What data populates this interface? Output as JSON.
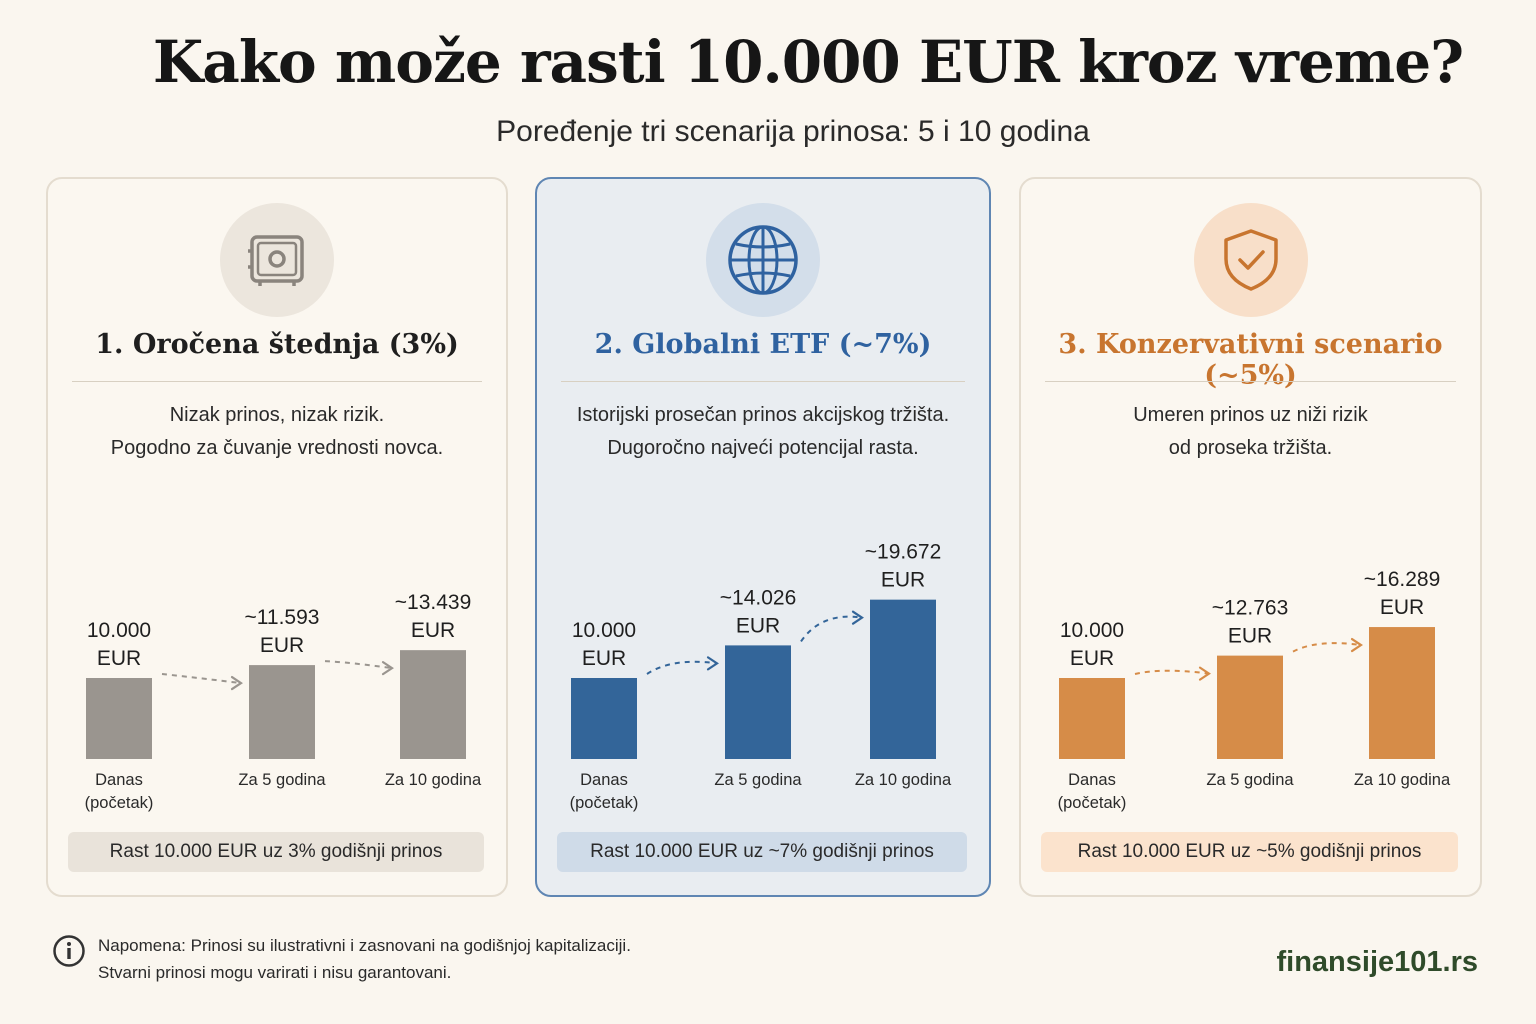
{
  "title": "Kako može rasti 10.000 EUR kroz vreme?",
  "subtitle": "Poređenje tri scenarija prinosa: 5 i 10 godina",
  "note": {
    "line1": "Napomena: Prinosi su ilustrativni i zasnovani na godišnjoj kapitalizaciji.",
    "line2": "Stvarni prinosi mogu varirati i nisu garantovani.",
    "icon": "info-icon"
  },
  "brand": "finansije101.rs",
  "scenarios": [
    {
      "title": "1. Oročena štednja (3%)",
      "icon": "safe-icon",
      "desc": [
        "Nizak prinos, nizak rizik.",
        "Pogodno za čuvanje vrednosti novca."
      ],
      "caption": "Rast 10.000 EUR uz 3% godišnji prinos",
      "color": "#9a958f",
      "title_color": "#1f1f1f",
      "icon_bg": "#ece6dd",
      "caption_bg": "#e9e3da"
    },
    {
      "title": "2. Globalni ETF (~7%)",
      "icon": "globe-icon",
      "desc": [
        "Istorijski prosečan prinos akcijskog tržišta.",
        "Dugoročno najveći potencijal rasta."
      ],
      "caption": "Rast 10.000 EUR uz ~7% godišnji prinos",
      "color": "#336599",
      "title_color": "#2f62a0",
      "icon_bg": "#d3deea",
      "caption_bg": "#cfdbe8"
    },
    {
      "title": "3. Konzervativni scenario (~5%)",
      "icon": "shield-check-icon",
      "desc": [
        "Umeren prinos uz niži rizik",
        "od proseka tržišta."
      ],
      "caption": "Rast 10.000 EUR uz ~5% godišnji prinos",
      "color": "#d68c48",
      "title_color": "#c8752f",
      "icon_bg": "#f8dfc9",
      "caption_bg": "#fbe3cd"
    }
  ],
  "chart_data": [
    {
      "type": "bar",
      "categories": [
        "Danas (početak)",
        "Za 5 godina",
        "Za 10 godina"
      ],
      "values": [
        10000,
        11593,
        13439
      ],
      "data_labels": [
        [
          "10.000",
          "EUR"
        ],
        [
          "~11.593",
          "EUR"
        ],
        [
          "~13.439",
          "EUR"
        ]
      ]
    },
    {
      "type": "bar",
      "categories": [
        "Danas (početak)",
        "Za 5 godina",
        "Za 10 godina"
      ],
      "values": [
        10000,
        14026,
        19672
      ],
      "data_labels": [
        [
          "10.000",
          "EUR"
        ],
        [
          "~14.026",
          "EUR"
        ],
        [
          "~19.672",
          "EUR"
        ]
      ]
    },
    {
      "type": "bar",
      "categories": [
        "Danas (početak)",
        "Za 5 godina",
        "Za 10 godina"
      ],
      "values": [
        10000,
        12763,
        16289
      ],
      "data_labels": [
        [
          "10.000",
          "EUR"
        ],
        [
          "~12.763",
          "EUR"
        ],
        [
          "~16.289",
          "EUR"
        ]
      ]
    }
  ]
}
